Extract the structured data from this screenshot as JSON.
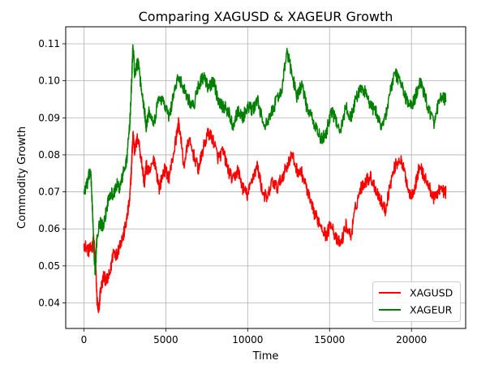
{
  "chart_data": {
    "type": "line",
    "title": "Comparing XAGUSD & XAGEUR Growth",
    "xlabel": "Time",
    "ylabel": "Commodity Growth",
    "xlim": [
      -1110,
      23310
    ],
    "ylim": [
      0.0331,
      0.1146
    ],
    "xticks": [
      0,
      5000,
      10000,
      15000,
      20000
    ],
    "xtick_labels": [
      "0",
      "5000",
      "10000",
      "15000",
      "20000"
    ],
    "yticks": [
      0.04,
      0.05,
      0.06,
      0.07,
      0.08,
      0.09,
      0.1,
      0.11
    ],
    "ytick_labels": [
      "0.04",
      "0.05",
      "0.06",
      "0.07",
      "0.08",
      "0.09",
      "0.10",
      "0.11"
    ],
    "grid": true,
    "legend": {
      "position": "lower-right"
    },
    "series": [
      {
        "name": "XAGUSD",
        "color": "#ff0000",
        "x": [
          0,
          300,
          500,
          600,
          700,
          800,
          900,
          1000,
          1200,
          1400,
          1600,
          1800,
          2000,
          2200,
          2400,
          2600,
          2800,
          2900,
          3000,
          3100,
          3300,
          3500,
          3700,
          3800,
          4000,
          4300,
          4600,
          4900,
          5200,
          5500,
          5800,
          6100,
          6400,
          6700,
          7000,
          7300,
          7600,
          7900,
          8200,
          8500,
          8800,
          9100,
          9400,
          9700,
          10000,
          10300,
          10600,
          10900,
          11200,
          11500,
          11800,
          12100,
          12400,
          12700,
          13000,
          13300,
          13600,
          13900,
          14200,
          14500,
          14800,
          15100,
          15400,
          15700,
          16000,
          16300,
          16600,
          16900,
          17200,
          17500,
          17800,
          18100,
          18400,
          18700,
          19000,
          19300,
          19600,
          19900,
          20200,
          20500,
          20800,
          21100,
          21400,
          21700,
          22000,
          22100
        ],
        "y": [
          0.056,
          0.054,
          0.055,
          0.057,
          0.052,
          0.041,
          0.037,
          0.043,
          0.047,
          0.046,
          0.048,
          0.054,
          0.053,
          0.056,
          0.058,
          0.062,
          0.068,
          0.076,
          0.086,
          0.081,
          0.085,
          0.079,
          0.072,
          0.077,
          0.075,
          0.079,
          0.071,
          0.076,
          0.074,
          0.081,
          0.089,
          0.077,
          0.084,
          0.08,
          0.076,
          0.082,
          0.086,
          0.084,
          0.079,
          0.081,
          0.076,
          0.073,
          0.076,
          0.071,
          0.069,
          0.074,
          0.077,
          0.07,
          0.068,
          0.073,
          0.071,
          0.074,
          0.077,
          0.08,
          0.076,
          0.075,
          0.071,
          0.066,
          0.063,
          0.061,
          0.058,
          0.062,
          0.057,
          0.056,
          0.061,
          0.058,
          0.066,
          0.071,
          0.073,
          0.074,
          0.071,
          0.068,
          0.065,
          0.072,
          0.077,
          0.079,
          0.075,
          0.069,
          0.071,
          0.077,
          0.074,
          0.071,
          0.068,
          0.071,
          0.07,
          0.07
        ]
      },
      {
        "name": "XAGEUR",
        "color": "#008000",
        "x": [
          0,
          200,
          400,
          500,
          600,
          700,
          800,
          1000,
          1200,
          1400,
          1600,
          1800,
          2000,
          2200,
          2400,
          2600,
          2800,
          2900,
          3000,
          3100,
          3300,
          3500,
          3700,
          3800,
          4000,
          4300,
          4600,
          4900,
          5200,
          5500,
          5800,
          6100,
          6400,
          6700,
          7000,
          7300,
          7600,
          7900,
          8200,
          8500,
          8800,
          9100,
          9400,
          9700,
          10000,
          10300,
          10600,
          10900,
          11200,
          11500,
          11800,
          12100,
          12400,
          12700,
          13000,
          13300,
          13600,
          13900,
          14200,
          14500,
          14800,
          15100,
          15400,
          15700,
          16000,
          16300,
          16600,
          16900,
          17200,
          17500,
          17800,
          18100,
          18400,
          18700,
          19000,
          19300,
          19600,
          19900,
          20200,
          20500,
          20800,
          21100,
          21400,
          21700,
          22000,
          22100
        ],
        "y": [
          0.07,
          0.072,
          0.076,
          0.068,
          0.055,
          0.048,
          0.058,
          0.062,
          0.06,
          0.066,
          0.07,
          0.069,
          0.072,
          0.071,
          0.075,
          0.078,
          0.088,
          0.098,
          0.11,
          0.102,
          0.105,
          0.098,
          0.092,
          0.088,
          0.092,
          0.089,
          0.096,
          0.094,
          0.09,
          0.097,
          0.101,
          0.098,
          0.095,
          0.093,
          0.099,
          0.101,
          0.098,
          0.1,
          0.095,
          0.093,
          0.092,
          0.088,
          0.092,
          0.09,
          0.093,
          0.092,
          0.095,
          0.089,
          0.088,
          0.092,
          0.095,
          0.098,
          0.108,
          0.102,
          0.096,
          0.099,
          0.093,
          0.09,
          0.087,
          0.084,
          0.086,
          0.092,
          0.089,
          0.087,
          0.093,
          0.09,
          0.095,
          0.098,
          0.097,
          0.093,
          0.092,
          0.088,
          0.09,
          0.097,
          0.102,
          0.1,
          0.096,
          0.093,
          0.095,
          0.1,
          0.096,
          0.092,
          0.088,
          0.095,
          0.095,
          0.095
        ]
      }
    ]
  }
}
